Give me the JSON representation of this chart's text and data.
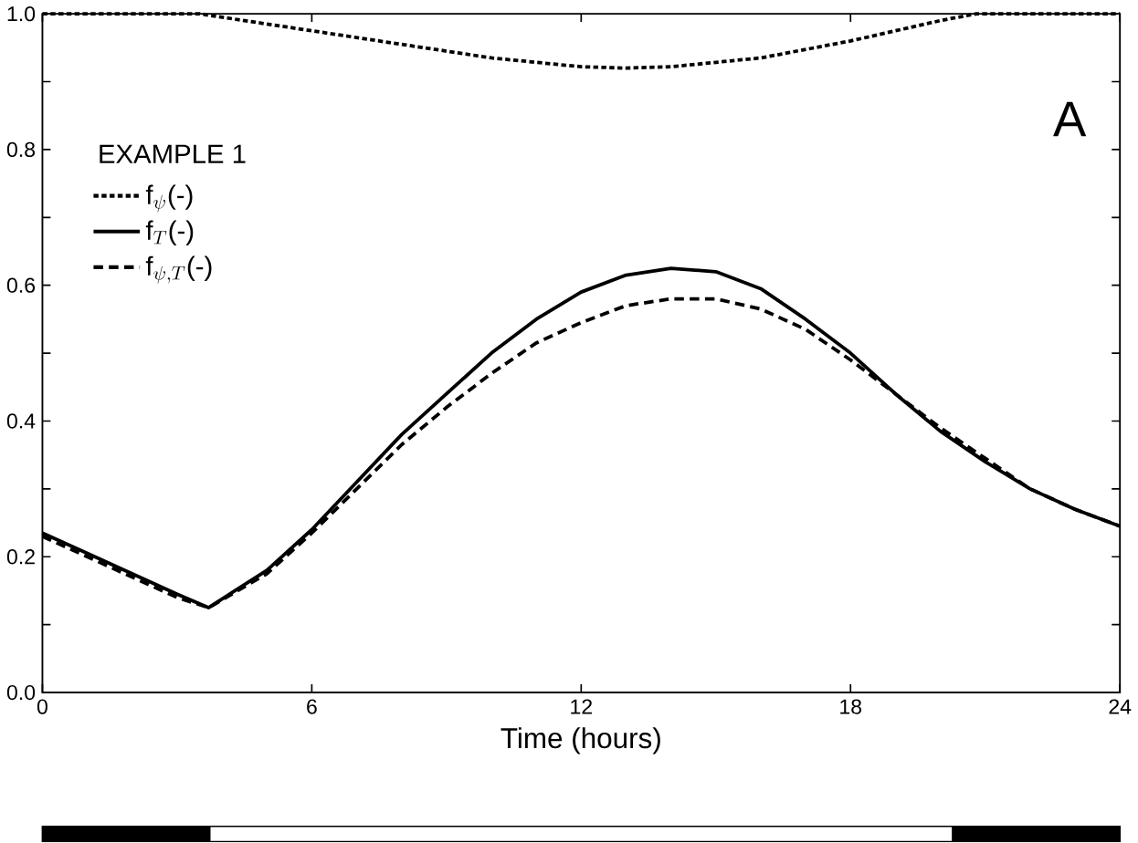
{
  "chart_data": {
    "type": "line",
    "xlabel": "Time (hours)",
    "legend_title": "EXAMPLE 1",
    "legend": "top left",
    "grid": false,
    "marker": "none",
    "xlim": [
      0,
      24
    ],
    "ylim": [
      0,
      1
    ],
    "xticks": [
      0,
      6,
      12,
      18,
      24
    ],
    "yticks": [
      {
        "value": 0,
        "label": "0.0"
      },
      {
        "value": 0.1,
        "label": null
      },
      {
        "value": 0.2,
        "label": "0.2"
      },
      {
        "value": 0.3,
        "label": null
      },
      {
        "value": 0.4,
        "label": "0.4"
      },
      {
        "value": 0.5,
        "label": null
      },
      {
        "value": 0.6,
        "label": "0.6"
      },
      {
        "value": 0.7,
        "label": null
      },
      {
        "value": 0.8,
        "label": "0.8"
      },
      {
        "value": 0.9,
        "label": null
      },
      {
        "value": 1,
        "label": "1.0"
      }
    ],
    "annotations": [
      "A"
    ],
    "series": [
      {
        "name": "\\textrm{f}_{\\psi}\\textrm{(-)}",
        "color": "#000000",
        "line_style": "dotted",
        "x": [
          0,
          2,
          3.5,
          4,
          5,
          6,
          8,
          10,
          12,
          13,
          14,
          16,
          18,
          19,
          20,
          20.8,
          22,
          24
        ],
        "values": [
          1,
          1,
          1,
          0.995,
          0.985,
          0.975,
          0.955,
          0.935,
          0.922,
          0.92,
          0.922,
          0.935,
          0.96,
          0.975,
          0.99,
          1,
          1,
          1
        ]
      },
      {
        "name": "\\textrm{f}_{T}\\textrm{(-)}",
        "color": "#000000",
        "line_style": "solid",
        "x": [
          0,
          1,
          2,
          3,
          3.7,
          5,
          6,
          7,
          8,
          9,
          10,
          11,
          12,
          13,
          14,
          15,
          16,
          17,
          18,
          19,
          20,
          21,
          22,
          23,
          24
        ],
        "values": [
          0.235,
          0.205,
          0.175,
          0.145,
          0.125,
          0.18,
          0.24,
          0.31,
          0.38,
          0.44,
          0.5,
          0.55,
          0.59,
          0.615,
          0.625,
          0.62,
          0.595,
          0.55,
          0.5,
          0.44,
          0.385,
          0.34,
          0.3,
          0.27,
          0.245
        ]
      },
      {
        "name": "\\textrm{f}_{\\psi,T}\\textrm{(-)}",
        "color": "#000000",
        "line_style": "dashed",
        "x": [
          0,
          1,
          2,
          3,
          3.7,
          5,
          6,
          7,
          8,
          9,
          10,
          11,
          12,
          13,
          14,
          15,
          16,
          17,
          18,
          19,
          20,
          21,
          22,
          23,
          24
        ],
        "values": [
          0.23,
          0.2,
          0.17,
          0.14,
          0.125,
          0.175,
          0.235,
          0.3,
          0.365,
          0.42,
          0.47,
          0.515,
          0.545,
          0.57,
          0.58,
          0.58,
          0.565,
          0.535,
          0.49,
          0.44,
          0.39,
          0.345,
          0.3,
          0.27,
          0.245
        ]
      }
    ]
  }
}
